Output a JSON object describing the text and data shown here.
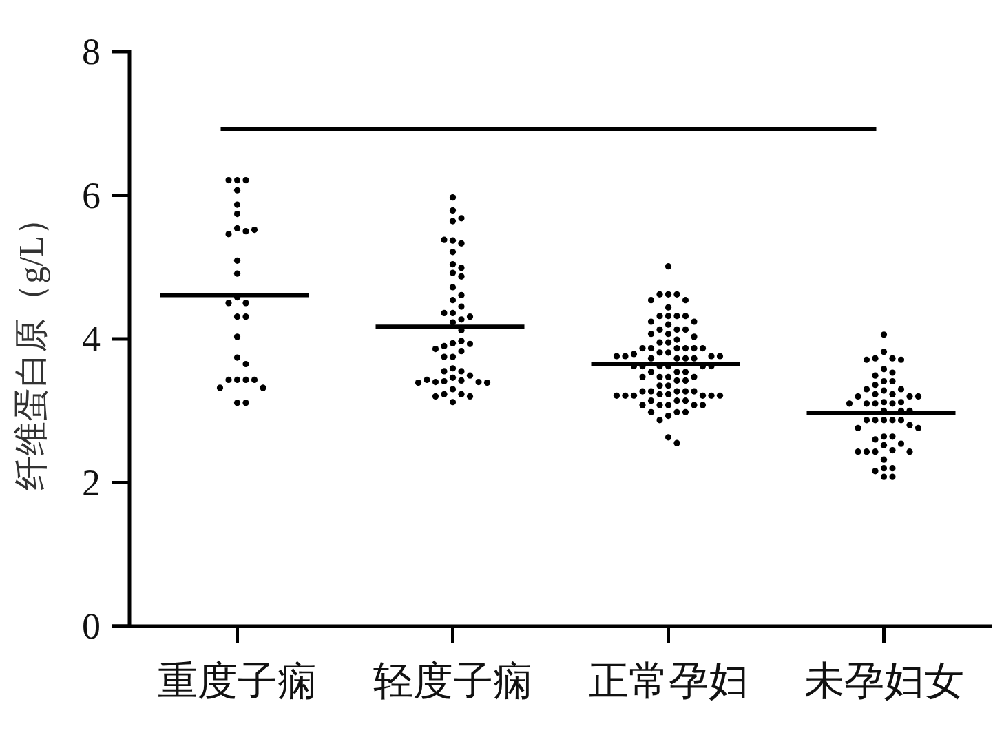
{
  "chart_data": {
    "type": "scatter",
    "ylabel": "纤维蛋白原（g/L）",
    "categories": [
      "重度子痫",
      "轻度子痫",
      "正常孕妇",
      "未孕妇女"
    ],
    "ylim": [
      0,
      8
    ],
    "yticks": [
      0,
      2,
      4,
      6,
      8
    ],
    "grid": false,
    "marker": "circle",
    "ref_lines": [
      {
        "axis": "y",
        "value": 6.92,
        "color": "#000000",
        "line_style": "solid"
      }
    ],
    "series": [
      {
        "color": "#000000",
        "x": [
          "重度子痫",
          "重度子痫",
          "重度子痫",
          "重度子痫",
          "重度子痫",
          "重度子痫",
          "重度子痫",
          "重度子痫",
          "重度子痫",
          "重度子痫",
          "重度子痫",
          "重度子痫",
          "重度子痫",
          "重度子痫",
          "重度子痫",
          "重度子痫",
          "重度子痫",
          "重度子痫",
          "重度子痫",
          "重度子痫",
          "重度子痫",
          "重度子痫",
          "重度子痫",
          "重度子痫",
          "重度子痫",
          "重度子痫",
          "重度子痫",
          "重度子痫"
        ],
        "values": [
          6.21,
          6.21,
          6.21,
          6.07,
          5.87,
          5.74,
          5.54,
          5.5,
          5.46,
          5.52,
          5.09,
          4.91,
          4.58,
          4.5,
          4.5,
          4.31,
          4.31,
          4.03,
          3.74,
          3.65,
          3.43,
          3.43,
          3.43,
          3.43,
          3.32,
          3.32,
          3.11,
          3.11
        ]
      },
      {
        "color": "#000000",
        "x": [
          "轻度子痫",
          "轻度子痫",
          "轻度子痫",
          "轻度子痫",
          "轻度子痫",
          "轻度子痫",
          "轻度子痫",
          "轻度子痫",
          "轻度子痫",
          "轻度子痫",
          "轻度子痫",
          "轻度子痫",
          "轻度子痫",
          "轻度子痫",
          "轻度子痫",
          "轻度子痫",
          "轻度子痫",
          "轻度子痫",
          "轻度子痫",
          "轻度子痫",
          "轻度子痫",
          "轻度子痫",
          "轻度子痫",
          "轻度子痫",
          "轻度子痫",
          "轻度子痫",
          "轻度子痫",
          "轻度子痫",
          "轻度子痫",
          "轻度子痫",
          "轻度子痫",
          "轻度子痫",
          "轻度子痫",
          "轻度子痫",
          "轻度子痫",
          "轻度子痫",
          "轻度子痫",
          "轻度子痫",
          "轻度子痫",
          "轻度子痫",
          "轻度子痫",
          "轻度子痫",
          "轻度子痫",
          "轻度子痫",
          "轻度子痫",
          "轻度子痫",
          "轻度子痫",
          "轻度子痫"
        ],
        "values": [
          5.97,
          5.79,
          5.68,
          5.64,
          5.37,
          5.33,
          5.38,
          5.21,
          5.04,
          4.99,
          4.92,
          4.87,
          4.72,
          4.61,
          4.54,
          4.45,
          4.36,
          4.36,
          4.27,
          4.31,
          4.23,
          4.12,
          3.94,
          3.97,
          3.9,
          3.93,
          3.86,
          3.83,
          3.75,
          3.75,
          3.59,
          3.55,
          3.55,
          3.49,
          3.46,
          3.42,
          3.41,
          3.4,
          3.4,
          3.43,
          3.39,
          3.39,
          3.3,
          3.23,
          3.23,
          3.2,
          3.2,
          3.12
        ]
      },
      {
        "color": "#000000",
        "x": [
          "正常孕妇",
          "正常孕妇",
          "正常孕妇",
          "正常孕妇",
          "正常孕妇",
          "正常孕妇",
          "正常孕妇",
          "正常孕妇",
          "正常孕妇",
          "正常孕妇",
          "正常孕妇",
          "正常孕妇",
          "正常孕妇",
          "正常孕妇",
          "正常孕妇",
          "正常孕妇",
          "正常孕妇",
          "正常孕妇",
          "正常孕妇",
          "正常孕妇",
          "正常孕妇",
          "正常孕妇",
          "正常孕妇",
          "正常孕妇",
          "正常孕妇",
          "正常孕妇",
          "正常孕妇",
          "正常孕妇",
          "正常孕妇",
          "正常孕妇",
          "正常孕妇",
          "正常孕妇",
          "正常孕妇",
          "正常孕妇",
          "正常孕妇",
          "正常孕妇",
          "正常孕妇",
          "正常孕妇",
          "正常孕妇",
          "正常孕妇",
          "正常孕妇",
          "正常孕妇",
          "正常孕妇",
          "正常孕妇",
          "正常孕妇",
          "正常孕妇",
          "正常孕妇",
          "正常孕妇",
          "正常孕妇",
          "正常孕妇",
          "正常孕妇",
          "正常孕妇",
          "正常孕妇",
          "正常孕妇",
          "正常孕妇",
          "正常孕妇",
          "正常孕妇",
          "正常孕妇",
          "正常孕妇",
          "正常孕妇",
          "正常孕妇",
          "正常孕妇",
          "正常孕妇",
          "正常孕妇",
          "正常孕妇",
          "正常孕妇",
          "正常孕妇",
          "正常孕妇",
          "正常孕妇",
          "正常孕妇",
          "正常孕妇",
          "正常孕妇",
          "正常孕妇",
          "正常孕妇",
          "正常孕妇",
          "正常孕妇",
          "正常孕妇",
          "正常孕妇",
          "正常孕妇",
          "正常孕妇",
          "正常孕妇",
          "正常孕妇",
          "正常孕妇",
          "正常孕妇",
          "正常孕妇"
        ],
        "values": [
          5.01,
          4.62,
          4.62,
          4.62,
          4.54,
          4.54,
          4.44,
          4.32,
          4.32,
          4.32,
          4.32,
          4.24,
          4.24,
          4.2,
          4.13,
          4.13,
          4.13,
          4.07,
          4.07,
          4.03,
          3.99,
          3.95,
          3.95,
          3.87,
          3.87,
          3.87,
          3.87,
          3.87,
          3.87,
          3.81,
          3.81,
          3.79,
          3.76,
          3.76,
          3.76,
          3.76,
          3.73,
          3.73,
          3.73,
          3.73,
          3.62,
          3.62,
          3.62,
          3.62,
          3.62,
          3.62,
          3.54,
          3.54,
          3.54,
          3.47,
          3.47,
          3.47,
          3.47,
          3.42,
          3.42,
          3.35,
          3.35,
          3.27,
          3.27,
          3.27,
          3.27,
          3.27,
          3.23,
          3.23,
          3.21,
          3.21,
          3.21,
          3.21,
          3.21,
          3.21,
          3.14,
          3.14,
          3.14,
          3.08,
          3.08,
          3.08,
          3.08,
          3.08,
          2.98,
          2.98,
          2.98,
          2.93,
          2.87,
          2.63,
          2.55
        ]
      },
      {
        "color": "#000000",
        "x": [
          "未孕妇女",
          "未孕妇女",
          "未孕妇女",
          "未孕妇女",
          "未孕妇女",
          "未孕妇女",
          "未孕妇女",
          "未孕妇女",
          "未孕妇女",
          "未孕妇女",
          "未孕妇女",
          "未孕妇女",
          "未孕妇女",
          "未孕妇女",
          "未孕妇女",
          "未孕妇女",
          "未孕妇女",
          "未孕妇女",
          "未孕妇女",
          "未孕妇女",
          "未孕妇女",
          "未孕妇女",
          "未孕妇女",
          "未孕妇女",
          "未孕妇女",
          "未孕妇女",
          "未孕妇女",
          "未孕妇女",
          "未孕妇女",
          "未孕妇女",
          "未孕妇女",
          "未孕妇女",
          "未孕妇女",
          "未孕妇女",
          "未孕妇女",
          "未孕妇女",
          "未孕妇女",
          "未孕妇女",
          "未孕妇女",
          "未孕妇女",
          "未孕妇女",
          "未孕妇女",
          "未孕妇女",
          "未孕妇女",
          "未孕妇女",
          "未孕妇女",
          "未孕妇女",
          "未孕妇女",
          "未孕妇女",
          "未孕妇女",
          "未孕妇女",
          "未孕妇女",
          "未孕妇女"
        ],
        "values": [
          4.06,
          3.82,
          3.73,
          3.73,
          3.71,
          3.71,
          3.58,
          3.53,
          3.49,
          3.41,
          3.41,
          3.36,
          3.3,
          3.3,
          3.28,
          3.23,
          3.23,
          3.2,
          3.2,
          3.2,
          3.12,
          3.12,
          3.1,
          3.1,
          3.1,
          3.1,
          3.0,
          3.0,
          3.0,
          2.87,
          2.87,
          2.87,
          2.87,
          2.87,
          2.8,
          2.76,
          2.76,
          2.64,
          2.64,
          2.6,
          2.54,
          2.52,
          2.45,
          2.43,
          2.43,
          2.43,
          2.43,
          2.32,
          2.2,
          2.2,
          2.16,
          2.08,
          2.08
        ]
      },
      {
        "type": "box",
        "color": "#000000",
        "boxes": [
          {
            "low": 4.61,
            "q1": 4.61,
            "median": 4.61,
            "q3": 4.61,
            "high": 4.61
          },
          {
            "low": 4.17,
            "q1": 4.17,
            "median": 4.17,
            "q3": 4.17,
            "high": 4.17
          },
          {
            "low": 3.65,
            "q1": 3.65,
            "median": 3.65,
            "q3": 3.65,
            "high": 3.65
          },
          {
            "low": 2.97,
            "q1": 2.97,
            "median": 2.97,
            "q3": 2.97,
            "high": 2.97
          }
        ]
      }
    ]
  }
}
